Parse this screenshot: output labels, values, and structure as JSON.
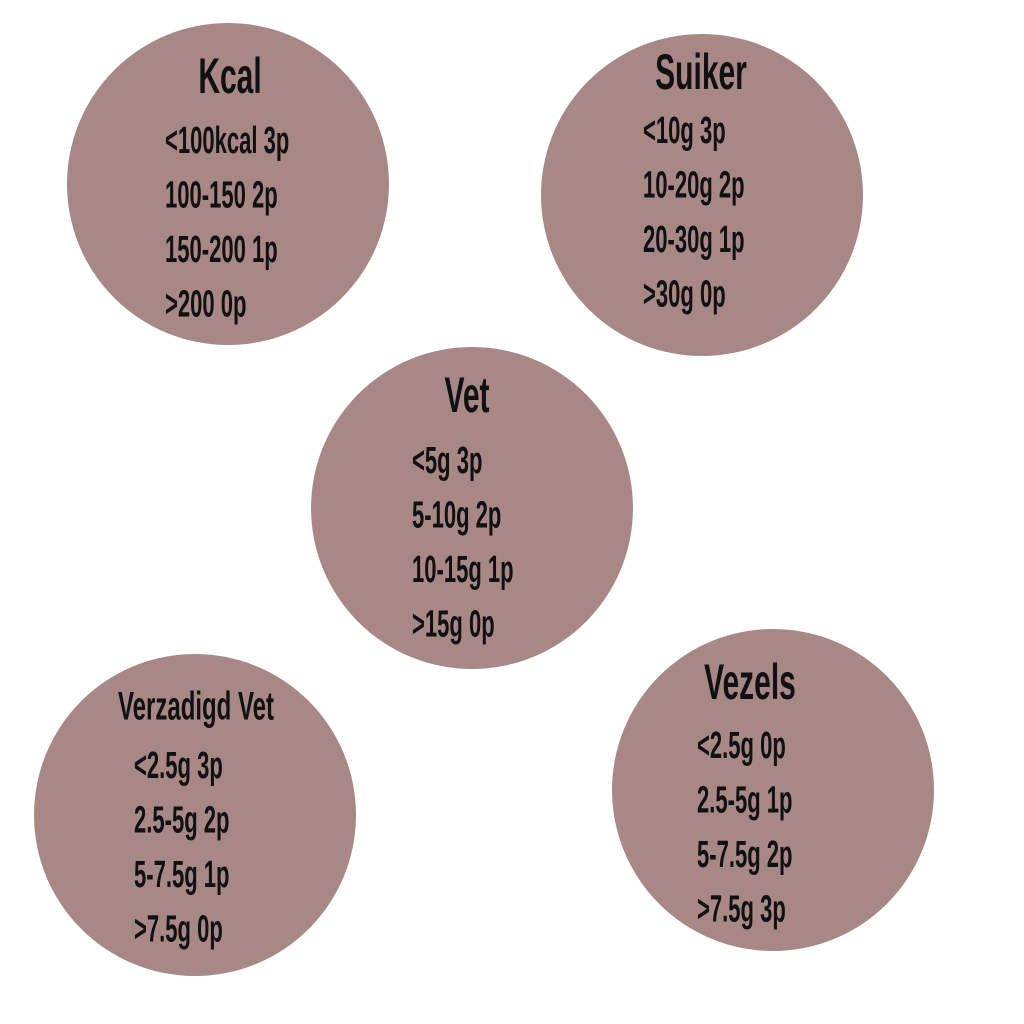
{
  "circles": [
    {
      "title": "Kcal",
      "lines": [
        "<100kcal 3p",
        "100-150 2p",
        "150-200 1p",
        ">200 0p"
      ]
    },
    {
      "title": "Suiker",
      "lines": [
        "<10g 3p",
        "10-20g 2p",
        "20-30g 1p",
        ">30g 0p"
      ]
    },
    {
      "title": "Vet",
      "lines": [
        "<5g 3p",
        "5-10g 2p",
        "10-15g 1p",
        ">15g 0p"
      ]
    },
    {
      "title": "Verzadigd Vet",
      "lines": [
        "<2.5g 3p",
        "2.5-5g 2p",
        "5-7.5g 1p",
        ">7.5g 0p"
      ]
    },
    {
      "title": "Vezels",
      "lines": [
        "<2.5g 0p",
        "2.5-5g 1p",
        "5-7.5g 2p",
        ">7.5g 3p"
      ]
    }
  ]
}
